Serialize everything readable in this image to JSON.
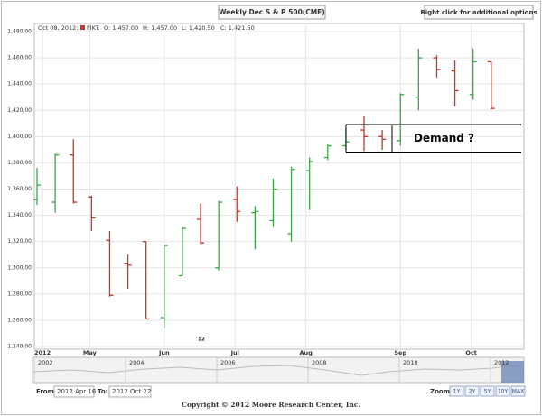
{
  "header": {
    "title": "Weekly Dec S & P 500(CME)",
    "options_hint": "Right click for additional options"
  },
  "info": {
    "date": "Oct 08, 2012:",
    "market": "MKT:",
    "open": "O: 1,457.00",
    "high": "H: 1,457.00",
    "low": "L: 1,420.50",
    "close": "C: 1,421.50"
  },
  "chart_data": {
    "type": "ohlc",
    "x": [
      0,
      1,
      2,
      3,
      4,
      5,
      6,
      7,
      8,
      9,
      10,
      11,
      12,
      13,
      14,
      15,
      16,
      17,
      18,
      19,
      20,
      21,
      22,
      23,
      24,
      25
    ],
    "open": [
      1352,
      1350,
      1386,
      1354,
      1321,
      1303,
      1320,
      1262,
      1294,
      1337,
      1300,
      1352,
      1342,
      1336,
      1326,
      1374,
      1384,
      1393,
      1405,
      1400,
      1397,
      1430,
      1460,
      1450,
      1432,
      1457
    ],
    "high": [
      1376,
      1387,
      1398,
      1355,
      1328,
      1310,
      1320,
      1317,
      1331,
      1349,
      1351,
      1362,
      1347,
      1368,
      1377,
      1384,
      1394,
      1406,
      1416,
      1405,
      1433,
      1467,
      1462,
      1458,
      1467,
      1457
    ],
    "low": [
      1348,
      1342,
      1349,
      1328,
      1278,
      1284,
      1261,
      1254,
      1294,
      1318,
      1298,
      1335,
      1314,
      1331,
      1320,
      1344,
      1382,
      1390,
      1389,
      1390,
      1393,
      1420,
      1445,
      1423,
      1428,
      1420.5
    ],
    "close": [
      1363,
      1386,
      1350,
      1338,
      1279,
      1302,
      1261,
      1317,
      1330,
      1319,
      1350,
      1343,
      1343,
      1360,
      1375,
      1381,
      1393,
      1396,
      1400,
      1398,
      1432,
      1460,
      1451,
      1435,
      1457,
      1421.5
    ],
    "up_color": "#3aa845",
    "down_color": "#c0392b",
    "xlim": [
      -0.15,
      26.8
    ],
    "xticks": [
      {
        "value": 0.3,
        "label": "2012"
      },
      {
        "value": 2.9,
        "label": "May"
      },
      {
        "value": 7.0,
        "label": "Jun"
      },
      {
        "value": 10.9,
        "label": "Jul"
      },
      {
        "value": 14.8,
        "label": "Aug"
      },
      {
        "value": 20.0,
        "label": "Sep"
      },
      {
        "value": 23.9,
        "label": "Oct"
      }
    ],
    "x_sublabels": [
      {
        "value": 9.0,
        "label": "'12"
      }
    ],
    "ylim": [
      1240,
      1480
    ],
    "yticks": [
      {
        "value": 1240,
        "label": "1,240.00"
      },
      {
        "value": 1260,
        "label": "1,260.00"
      },
      {
        "value": 1280,
        "label": "1,280.00"
      },
      {
        "value": 1300,
        "label": "1,300.00"
      },
      {
        "value": 1320,
        "label": "1,320.00"
      },
      {
        "value": 1340,
        "label": "1,340.00"
      },
      {
        "value": 1360,
        "label": "1,360.00"
      },
      {
        "value": 1380,
        "label": "1,380.00"
      },
      {
        "value": 1400,
        "label": "1,400.00"
      },
      {
        "value": 1420,
        "label": "1,420.00"
      },
      {
        "value": 1440,
        "label": "1,440.00"
      },
      {
        "value": 1460,
        "label": "1,460.00"
      },
      {
        "value": 1480,
        "label": "1,480.00"
      }
    ],
    "grid": true,
    "annotation": {
      "text": "Demand ?",
      "low": 1388,
      "high": 1409
    }
  },
  "navigator": {
    "years": [
      "2002",
      "2004",
      "2006",
      "2008",
      "2010",
      "2012"
    ],
    "from_label": "From:",
    "from": "2012 Apr 16",
    "to_label": "To:",
    "to": "2012 Oct 22",
    "zoom_label": "Zoom:",
    "buttons": [
      "1Y",
      "2Y",
      "5Y",
      "10Y",
      "MAX"
    ]
  },
  "footer": {
    "copyright": "Copyright © 2012 Moore Research Center, Inc."
  }
}
